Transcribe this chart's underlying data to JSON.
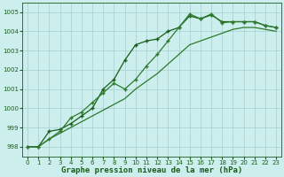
{
  "xlabel": "Graphe pression niveau de la mer (hPa)",
  "background_color": "#cceeed",
  "grid_color": "#aad4d4",
  "line_color_dark": "#1a5c1a",
  "line_color_mid": "#2d7a2d",
  "xlim": [
    -0.5,
    23.5
  ],
  "ylim": [
    997.5,
    1005.5
  ],
  "yticks": [
    998,
    999,
    1000,
    1001,
    1002,
    1003,
    1004,
    1005
  ],
  "xticks": [
    0,
    1,
    2,
    3,
    4,
    5,
    6,
    7,
    8,
    9,
    10,
    11,
    12,
    13,
    14,
    15,
    16,
    17,
    18,
    19,
    20,
    21,
    22,
    23
  ],
  "line1_x": [
    0,
    1,
    2,
    3,
    4,
    5,
    6,
    7,
    8,
    9,
    10,
    11,
    12,
    13,
    14,
    15,
    16,
    17,
    18,
    19,
    20,
    21,
    22,
    23
  ],
  "line1_y": [
    998.0,
    998.0,
    998.8,
    998.9,
    999.2,
    999.6,
    1000.0,
    1001.0,
    1001.5,
    1002.5,
    1003.3,
    1003.5,
    1003.6,
    1004.0,
    1004.2,
    1004.8,
    1004.65,
    1004.85,
    1004.5,
    1004.5,
    1004.5,
    1004.5,
    1004.3,
    1004.2
  ],
  "line2_x": [
    0,
    1,
    2,
    3,
    4,
    5,
    6,
    7,
    8,
    9,
    10,
    11,
    12,
    13,
    14,
    15,
    16,
    17,
    18,
    19,
    20,
    21,
    22,
    23
  ],
  "line2_y": [
    998.0,
    998.0,
    998.4,
    998.8,
    999.5,
    999.8,
    1000.3,
    1000.8,
    1001.3,
    1001.0,
    1001.5,
    1002.2,
    1002.8,
    1003.5,
    1004.2,
    1004.9,
    1004.65,
    1004.9,
    1004.45,
    1004.5,
    1004.5,
    1004.5,
    1004.3,
    1004.2
  ],
  "line3_x": [
    0,
    1,
    2,
    3,
    4,
    5,
    6,
    7,
    8,
    9,
    10,
    11,
    12,
    13,
    14,
    15,
    16,
    17,
    18,
    19,
    20,
    21,
    22,
    23
  ],
  "line3_y": [
    998.0,
    998.0,
    998.4,
    998.7,
    999.0,
    999.3,
    999.6,
    999.9,
    1000.2,
    1000.5,
    1001.0,
    1001.4,
    1001.8,
    1002.3,
    1002.8,
    1003.3,
    1003.5,
    1003.7,
    1003.9,
    1004.1,
    1004.2,
    1004.2,
    1004.1,
    1004.0
  ]
}
